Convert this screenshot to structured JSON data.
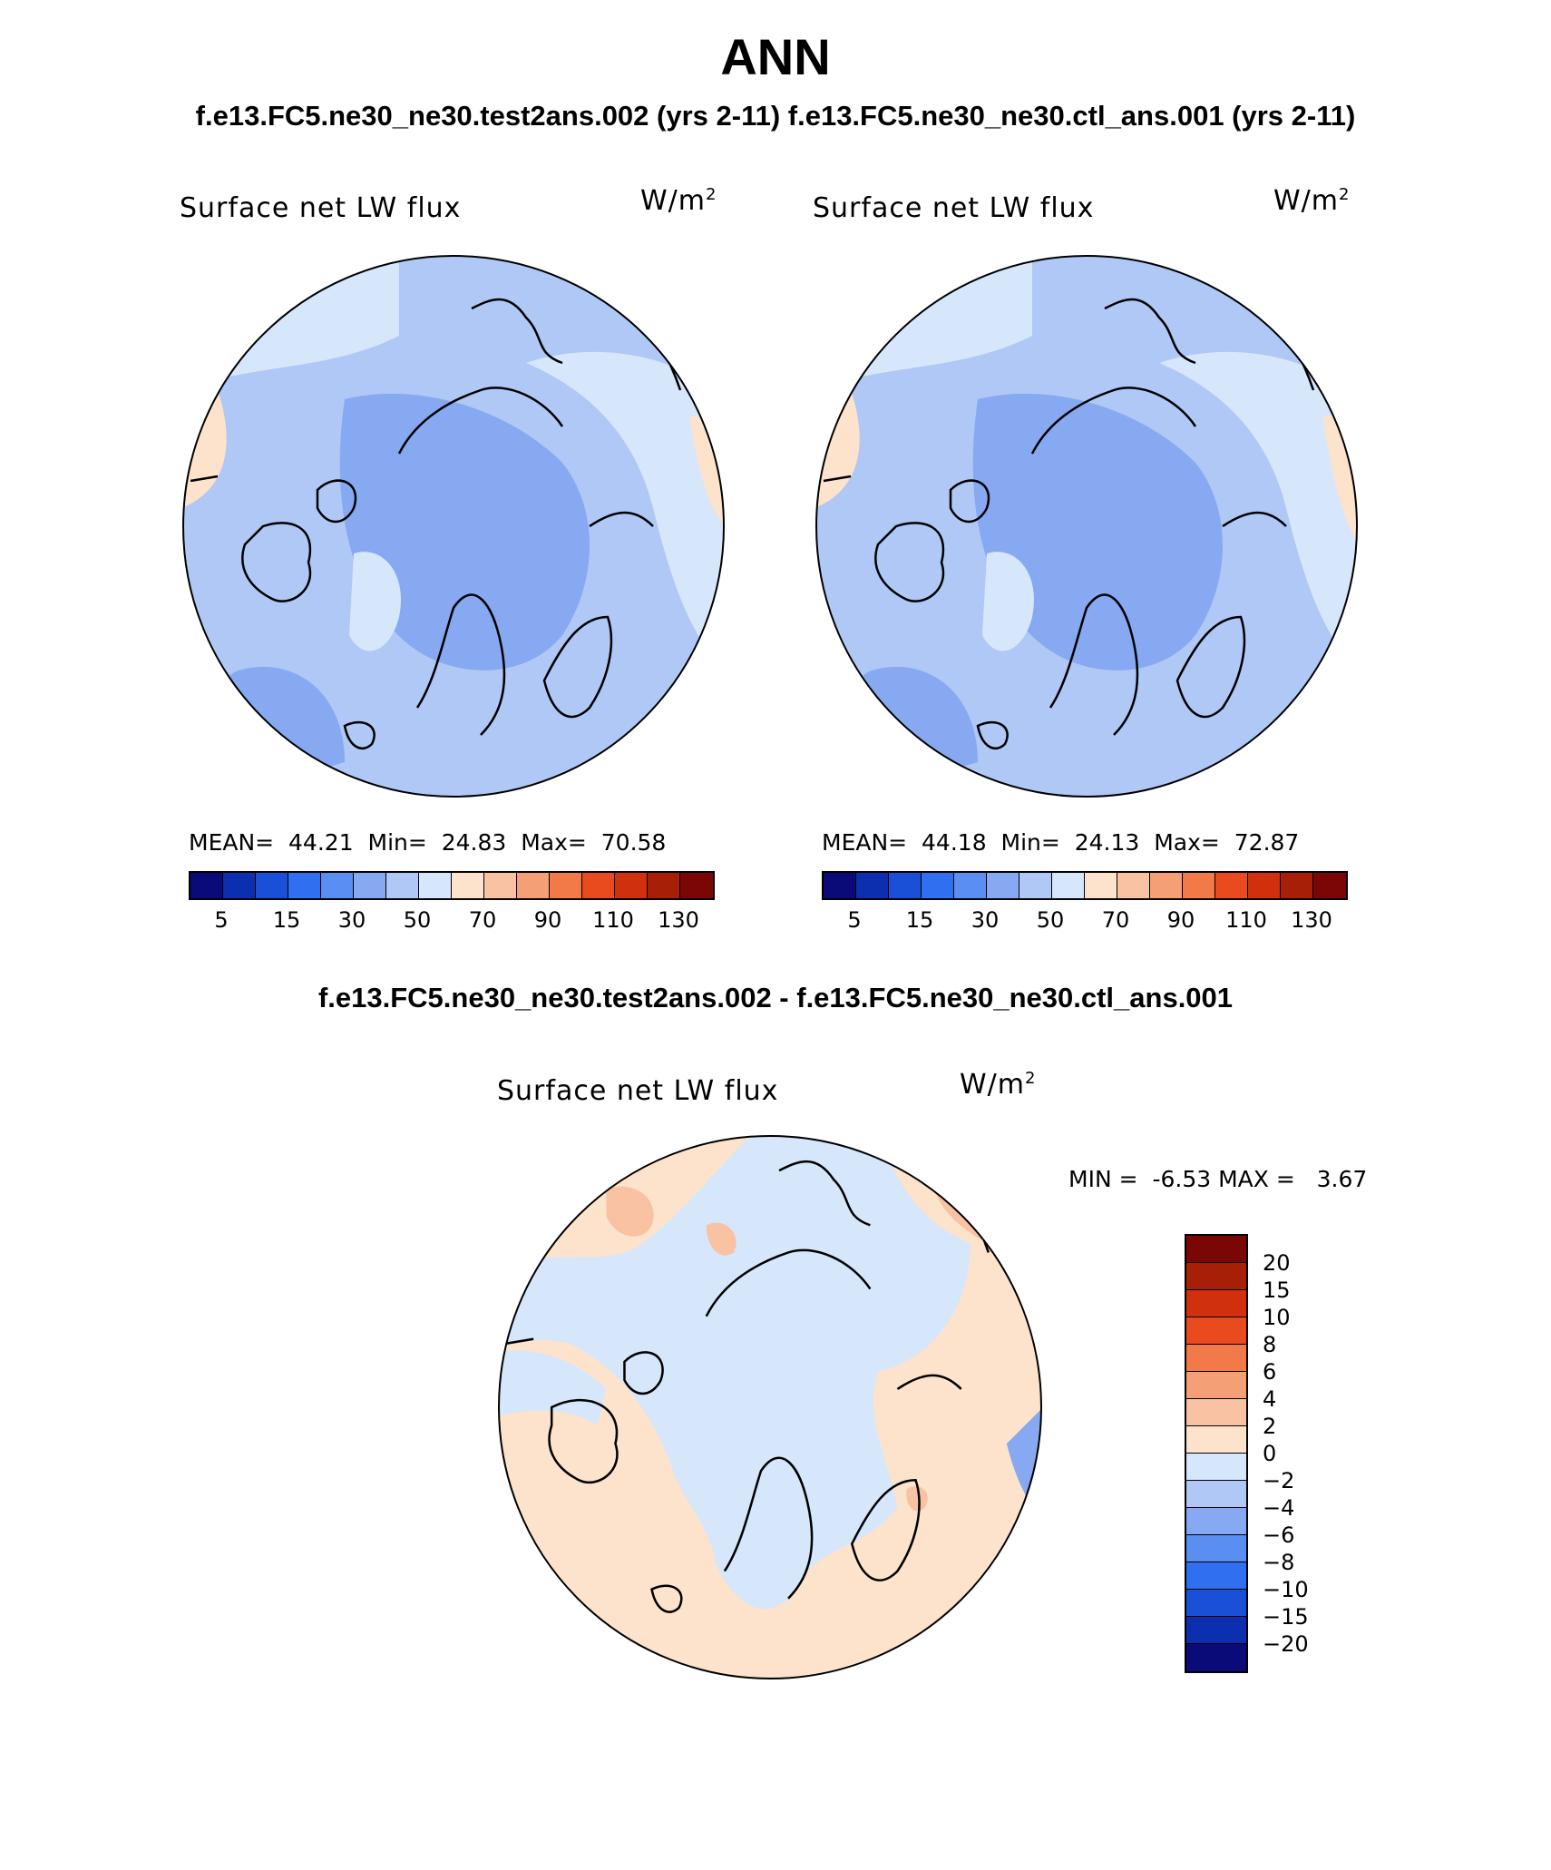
{
  "figure": {
    "title": "ANN",
    "subtitle": "f.e13.FC5.ne30_ne30.test2ans.002 (yrs 2-11)   f.e13.FC5.ne30_ne30.ctl_ans.001 (yrs 2-11)",
    "diff_title": "f.e13.FC5.ne30_ne30.test2ans.002 - f.e13.FC5.ne30_ne30.ctl_ans.001"
  },
  "panels": {
    "test": {
      "variable_label": "Surface net LW flux",
      "units": "W/m",
      "units_exp": "2",
      "stats": {
        "mean_label": "MEAN=",
        "mean": "44.21",
        "min_label": "Min=",
        "min": "24.83",
        "max_label": "Max=",
        "max": "70.58"
      }
    },
    "control": {
      "variable_label": "Surface net LW flux",
      "units": "W/m",
      "units_exp": "2",
      "stats": {
        "mean_label": "MEAN=",
        "mean": "44.18",
        "min_label": "Min=",
        "min": "24.13",
        "max_label": "Max=",
        "max": "72.87"
      }
    },
    "difference": {
      "variable_label": "Surface net LW flux",
      "units": "W/m",
      "units_exp": "2",
      "stats": {
        "min_label": "MIN =",
        "min": "-6.53",
        "max_label": "MAX =",
        "max": "3.67"
      }
    }
  },
  "colorbars": {
    "main": {
      "colors": [
        "#0a0a78",
        "#0c2fb0",
        "#1a4fd8",
        "#2f6ff0",
        "#5a8ef0",
        "#86a9f2",
        "#b0c8f6",
        "#d6e6fb",
        "#fde3cc",
        "#f8c2a3",
        "#f59f77",
        "#f27a48",
        "#ea4b1e",
        "#d1300f",
        "#a81f07",
        "#7b0606"
      ],
      "tick_labels": [
        "5",
        "15",
        "30",
        "50",
        "70",
        "90",
        "110",
        "130"
      ]
    },
    "diff": {
      "colors_top_to_bottom": [
        "#7b0606",
        "#a81f07",
        "#d1300f",
        "#ea4b1e",
        "#f27a48",
        "#f59f77",
        "#f8c2a3",
        "#fde3cc",
        "#d6e6fb",
        "#b0c8f6",
        "#86a9f2",
        "#5a8ef0",
        "#2f6ff0",
        "#1a4fd8",
        "#0c2fb0",
        "#0a0a78"
      ],
      "tick_labels": [
        "20",
        "15",
        "10",
        "8",
        "6",
        "4",
        "2",
        "0",
        "−2",
        "−4",
        "−6",
        "−8",
        "−10",
        "−15",
        "−20"
      ]
    }
  },
  "map_fill": {
    "full_field_base": "#b0c8f6",
    "full_field_low": "#86a9f2",
    "full_field_mid": "#d6e6fb",
    "full_field_high": "#fde3cc",
    "diff_base": "#fde3cc",
    "diff_neg": "#d6e6fb",
    "diff_pos": "#f8c2a3",
    "diff_strong_neg": "#86a9f2"
  }
}
